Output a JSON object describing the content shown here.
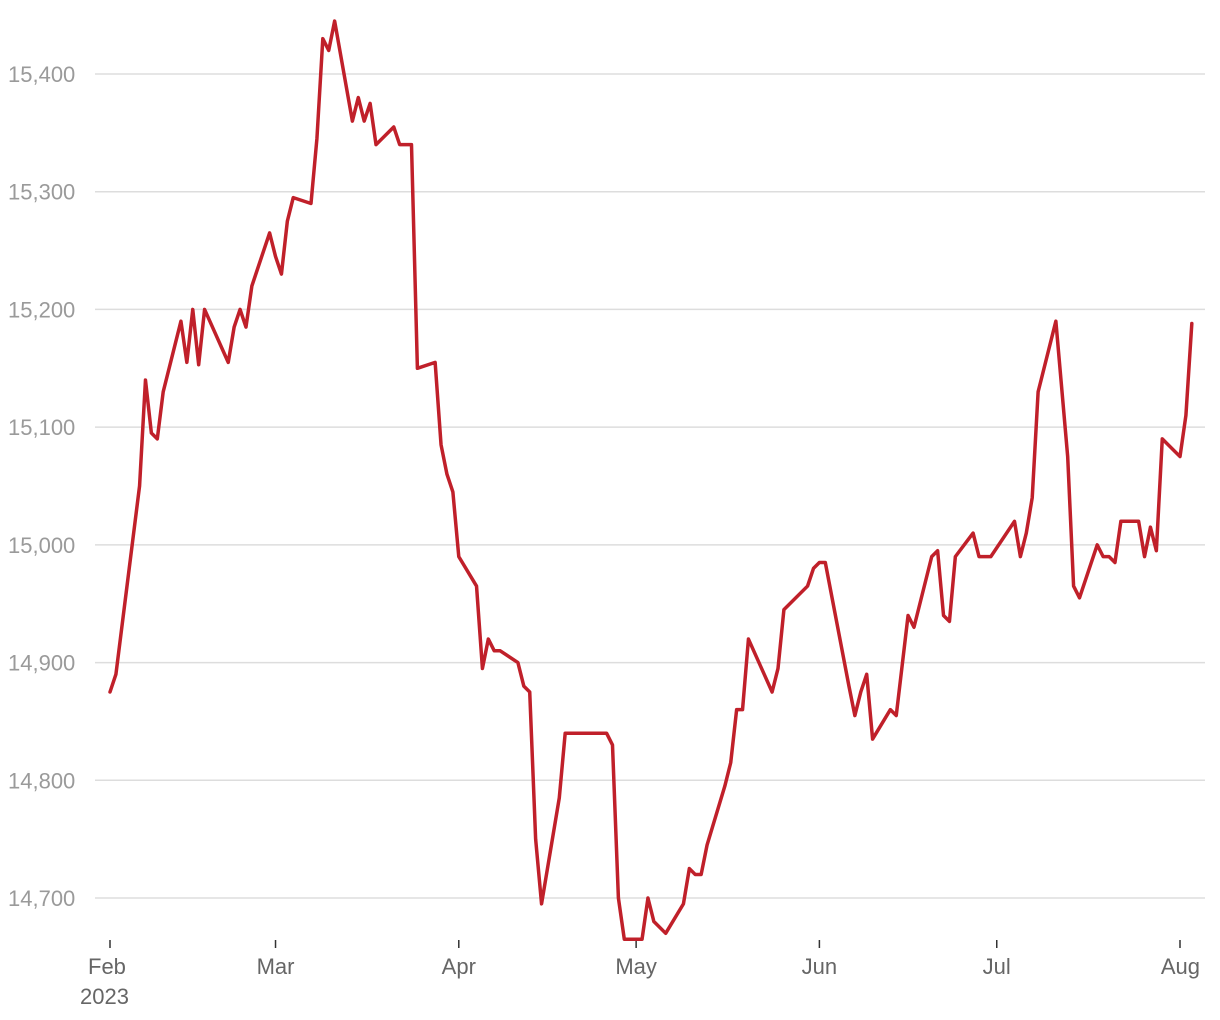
{
  "chart_data": {
    "type": "line",
    "title": "",
    "xlabel": "",
    "ylabel": "",
    "x_axis": {
      "range": [
        "2023-02-01",
        "2023-08-01"
      ],
      "ticks": [
        {
          "date": "2023-02-01",
          "label": "Feb",
          "sublabel": "2023"
        },
        {
          "date": "2023-03-01",
          "label": "Mar"
        },
        {
          "date": "2023-04-01",
          "label": "Apr"
        },
        {
          "date": "2023-05-01",
          "label": "May"
        },
        {
          "date": "2023-06-01",
          "label": "Jun"
        },
        {
          "date": "2023-07-01",
          "label": "Jul"
        },
        {
          "date": "2023-08-01",
          "label": "Aug"
        }
      ]
    },
    "y_axis": {
      "range": [
        14665,
        15445
      ],
      "ticks": [
        {
          "value": 14700,
          "label": "14,700"
        },
        {
          "value": 14800,
          "label": "14,800"
        },
        {
          "value": 14900,
          "label": "14,900"
        },
        {
          "value": 15000,
          "label": "15,000"
        },
        {
          "value": 15100,
          "label": "15,100"
        },
        {
          "value": 15200,
          "label": "15,200"
        },
        {
          "value": 15300,
          "label": "15,300"
        },
        {
          "value": 15400,
          "label": "15,400"
        }
      ]
    },
    "grid": true,
    "legend": "none",
    "series": [
      {
        "color": "#c0202a",
        "points": [
          [
            "2023-02-01",
            14875
          ],
          [
            "2023-02-02",
            14890
          ],
          [
            "2023-02-06",
            15050
          ],
          [
            "2023-02-07",
            15140
          ],
          [
            "2023-02-08",
            15095
          ],
          [
            "2023-02-09",
            15090
          ],
          [
            "2023-02-10",
            15130
          ],
          [
            "2023-02-13",
            15190
          ],
          [
            "2023-02-14",
            15155
          ],
          [
            "2023-02-15",
            15200
          ],
          [
            "2023-02-16",
            15153
          ],
          [
            "2023-02-17",
            15200
          ],
          [
            "2023-02-21",
            15155
          ],
          [
            "2023-02-22",
            15185
          ],
          [
            "2023-02-23",
            15200
          ],
          [
            "2023-02-24",
            15185
          ],
          [
            "2023-02-25",
            15220
          ],
          [
            "2023-02-28",
            15265
          ],
          [
            "2023-03-01",
            15245
          ],
          [
            "2023-03-02",
            15230
          ],
          [
            "2023-03-03",
            15275
          ],
          [
            "2023-03-04",
            15295
          ],
          [
            "2023-03-07",
            15290
          ],
          [
            "2023-03-08",
            15345
          ],
          [
            "2023-03-09",
            15430
          ],
          [
            "2023-03-10",
            15420
          ],
          [
            "2023-03-11",
            15445
          ],
          [
            "2023-03-14",
            15360
          ],
          [
            "2023-03-15",
            15380
          ],
          [
            "2023-03-16",
            15360
          ],
          [
            "2023-03-17",
            15375
          ],
          [
            "2023-03-18",
            15340
          ],
          [
            "2023-03-21",
            15355
          ],
          [
            "2023-03-22",
            15340
          ],
          [
            "2023-03-24",
            15340
          ],
          [
            "2023-03-25",
            15150
          ],
          [
            "2023-03-28",
            15155
          ],
          [
            "2023-03-29",
            15085
          ],
          [
            "2023-03-30",
            15060
          ],
          [
            "2023-03-31",
            15045
          ],
          [
            "2023-04-01",
            14990
          ],
          [
            "2023-04-04",
            14965
          ],
          [
            "2023-04-05",
            14895
          ],
          [
            "2023-04-06",
            14920
          ],
          [
            "2023-04-07",
            14910
          ],
          [
            "2023-04-08",
            14910
          ],
          [
            "2023-04-11",
            14900
          ],
          [
            "2023-04-12",
            14880
          ],
          [
            "2023-04-13",
            14875
          ],
          [
            "2023-04-14",
            14750
          ],
          [
            "2023-04-15",
            14695
          ],
          [
            "2023-04-18",
            14785
          ],
          [
            "2023-04-19",
            14840
          ],
          [
            "2023-04-26",
            14840
          ],
          [
            "2023-04-27",
            14830
          ],
          [
            "2023-04-28",
            14700
          ],
          [
            "2023-04-29",
            14665
          ],
          [
            "2023-05-02",
            14665
          ],
          [
            "2023-05-03",
            14700
          ],
          [
            "2023-05-04",
            14680
          ],
          [
            "2023-05-06",
            14670
          ],
          [
            "2023-05-09",
            14695
          ],
          [
            "2023-05-10",
            14725
          ],
          [
            "2023-05-11",
            14720
          ],
          [
            "2023-05-12",
            14720
          ],
          [
            "2023-05-13",
            14745
          ],
          [
            "2023-05-16",
            14795
          ],
          [
            "2023-05-17",
            14815
          ],
          [
            "2023-05-18",
            14860
          ],
          [
            "2023-05-19",
            14860
          ],
          [
            "2023-05-20",
            14920
          ],
          [
            "2023-05-24",
            14875
          ],
          [
            "2023-05-25",
            14895
          ],
          [
            "2023-05-26",
            14945
          ],
          [
            "2023-05-30",
            14965
          ],
          [
            "2023-05-31",
            14980
          ],
          [
            "2023-06-01",
            14985
          ],
          [
            "2023-06-02",
            14985
          ],
          [
            "2023-06-06",
            14880
          ],
          [
            "2023-06-07",
            14855
          ],
          [
            "2023-06-08",
            14875
          ],
          [
            "2023-06-09",
            14890
          ],
          [
            "2023-06-10",
            14835
          ],
          [
            "2023-06-13",
            14860
          ],
          [
            "2023-06-14",
            14855
          ],
          [
            "2023-06-16",
            14940
          ],
          [
            "2023-06-17",
            14930
          ],
          [
            "2023-06-20",
            14990
          ],
          [
            "2023-06-21",
            14995
          ],
          [
            "2023-06-22",
            14940
          ],
          [
            "2023-06-23",
            14935
          ],
          [
            "2023-06-24",
            14990
          ],
          [
            "2023-06-27",
            15010
          ],
          [
            "2023-06-28",
            14990
          ],
          [
            "2023-06-30",
            14990
          ],
          [
            "2023-07-04",
            15020
          ],
          [
            "2023-07-05",
            14990
          ],
          [
            "2023-07-06",
            15010
          ],
          [
            "2023-07-07",
            15040
          ],
          [
            "2023-07-08",
            15130
          ],
          [
            "2023-07-11",
            15190
          ],
          [
            "2023-07-13",
            15075
          ],
          [
            "2023-07-14",
            14965
          ],
          [
            "2023-07-15",
            14955
          ],
          [
            "2023-07-18",
            15000
          ],
          [
            "2023-07-19",
            14990
          ],
          [
            "2023-07-20",
            14990
          ],
          [
            "2023-07-21",
            14985
          ],
          [
            "2023-07-22",
            15020
          ],
          [
            "2023-07-25",
            15020
          ],
          [
            "2023-07-26",
            14990
          ],
          [
            "2023-07-27",
            15015
          ],
          [
            "2023-07-28",
            14995
          ],
          [
            "2023-07-29",
            15090
          ],
          [
            "2023-08-01",
            15075
          ],
          [
            "2023-08-02",
            15110
          ],
          [
            "2023-08-03",
            15188
          ]
        ]
      }
    ]
  }
}
